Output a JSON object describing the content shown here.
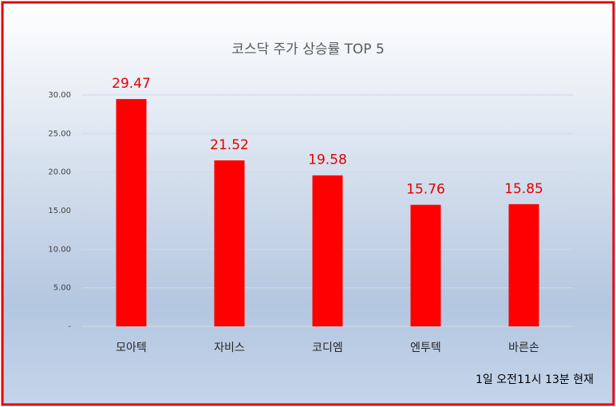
{
  "chart_data": {
    "type": "bar",
    "title": "코스닥 주가 상승률 TOP 5",
    "categories": [
      "모아텍",
      "자비스",
      "코디엠",
      "엔투텍",
      "바른손"
    ],
    "values": [
      29.47,
      21.52,
      19.58,
      15.76,
      15.85
    ],
    "color": "#ff0000",
    "ylim": [
      0,
      30
    ],
    "yticks": [
      {
        "value": 0,
        "label": "-"
      },
      {
        "value": 5,
        "label": "5.00"
      },
      {
        "value": 10,
        "label": "10.00"
      },
      {
        "value": 15,
        "label": "15.00"
      },
      {
        "value": 20,
        "label": "20.00"
      },
      {
        "value": 25,
        "label": "25.00"
      },
      {
        "value": 30,
        "label": "30.00"
      }
    ],
    "grid": true,
    "annotation": "1일 오전11시 13분  현재"
  }
}
